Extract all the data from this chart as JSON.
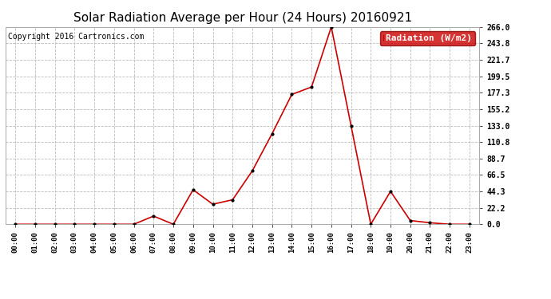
{
  "title": "Solar Radiation Average per Hour (24 Hours) 20160921",
  "copyright": "Copyright 2016 Cartronics.com",
  "legend_label": "Radiation (W/m2)",
  "hours": [
    "00:00",
    "01:00",
    "02:00",
    "03:00",
    "04:00",
    "05:00",
    "06:00",
    "07:00",
    "08:00",
    "09:00",
    "10:00",
    "11:00",
    "12:00",
    "13:00",
    "14:00",
    "15:00",
    "16:00",
    "17:00",
    "18:00",
    "19:00",
    "20:00",
    "21:00",
    "22:00",
    "23:00"
  ],
  "values": [
    0.0,
    0.0,
    0.0,
    0.0,
    0.0,
    0.0,
    0.0,
    11.0,
    0.0,
    46.5,
    27.0,
    33.0,
    72.0,
    122.0,
    175.0,
    185.0,
    266.0,
    133.0,
    0.0,
    44.3,
    5.0,
    2.0,
    0.0,
    0.0
  ],
  "ylim": [
    0.0,
    266.0
  ],
  "yticks": [
    0.0,
    22.2,
    44.3,
    66.5,
    88.7,
    110.8,
    133.0,
    155.2,
    177.3,
    199.5,
    221.7,
    243.8,
    266.0
  ],
  "ytick_labels": [
    "0.0",
    "22.2",
    "44.3",
    "66.5",
    "88.7",
    "110.8",
    "133.0",
    "155.2",
    "177.3",
    "199.5",
    "221.7",
    "243.8",
    "266.0"
  ],
  "line_color": "#cc0000",
  "marker_color": "#000000",
  "bg_color": "#ffffff",
  "grid_color": "#bbbbbb",
  "title_fontsize": 11,
  "copyright_fontsize": 7,
  "legend_bg": "#cc0000",
  "legend_text_color": "#ffffff",
  "legend_fontsize": 8
}
